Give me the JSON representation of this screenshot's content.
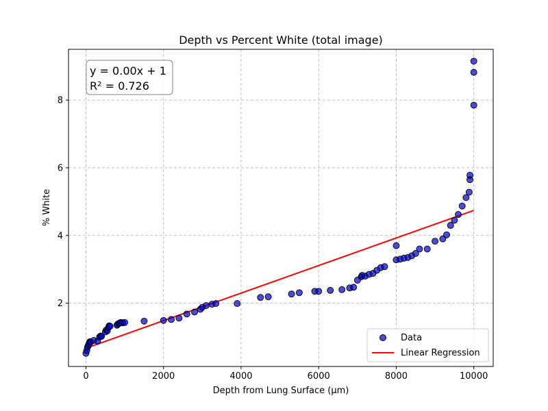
{
  "chart_data": {
    "type": "scatter",
    "title": "Depth vs Percent White (total image)",
    "xlabel": "Depth from Lung Surface (μm)",
    "ylabel": "% White",
    "xlim": [
      -450,
      10500
    ],
    "ylim": [
      0.13,
      9.5
    ],
    "x_ticks": [
      0,
      2000,
      4000,
      6000,
      8000,
      10000
    ],
    "y_ticks": [
      2,
      4,
      6,
      8
    ],
    "grid": true,
    "legend_position": "bottom-right",
    "annotation": {
      "line1": "y = 0.00x + 1",
      "line2": "R² = 0.726"
    },
    "series": [
      {
        "name": "Data",
        "kind": "scatter",
        "color": "#0000cc",
        "x": [
          0,
          20,
          40,
          60,
          80,
          100,
          120,
          200,
          300,
          350,
          380,
          400,
          500,
          520,
          550,
          580,
          600,
          620,
          800,
          820,
          850,
          880,
          900,
          950,
          1000,
          1500,
          2000,
          2200,
          2400,
          2600,
          2800,
          2950,
          3000,
          3100,
          3250,
          3350,
          3900,
          4500,
          4700,
          5300,
          5500,
          5900,
          6000,
          6300,
          6600,
          6800,
          6900,
          7000,
          7100,
          7120,
          7200,
          7300,
          7400,
          7500,
          7600,
          7700,
          8000,
          8000,
          8100,
          8200,
          8300,
          8400,
          8500,
          8600,
          8800,
          9000,
          9200,
          9300,
          9400,
          9500,
          9600,
          9700,
          9800,
          9880,
          9900,
          9900,
          10000,
          10000,
          10000
        ],
        "y": [
          0.52,
          0.6,
          0.7,
          0.75,
          0.8,
          0.86,
          0.85,
          0.9,
          0.88,
          1.0,
          1.03,
          1.02,
          1.15,
          1.2,
          1.18,
          1.28,
          1.33,
          1.32,
          1.35,
          1.38,
          1.4,
          1.42,
          1.43,
          1.42,
          1.43,
          1.47,
          1.49,
          1.52,
          1.56,
          1.68,
          1.74,
          1.82,
          1.88,
          1.93,
          1.97,
          1.99,
          1.99,
          2.17,
          2.19,
          2.27,
          2.31,
          2.35,
          2.35,
          2.38,
          2.4,
          2.45,
          2.47,
          2.68,
          2.78,
          2.82,
          2.8,
          2.85,
          2.88,
          2.97,
          3.05,
          3.08,
          3.28,
          3.7,
          3.3,
          3.33,
          3.35,
          3.4,
          3.47,
          3.6,
          3.6,
          3.83,
          3.9,
          4.02,
          4.3,
          4.45,
          4.62,
          4.87,
          5.12,
          5.28,
          5.65,
          5.78,
          7.85,
          8.82,
          9.15
        ]
      },
      {
        "name": "Linear Regression",
        "kind": "line",
        "color": "#ff0000",
        "x": [
          0,
          10000
        ],
        "y": [
          0.67,
          4.74
        ]
      }
    ]
  }
}
